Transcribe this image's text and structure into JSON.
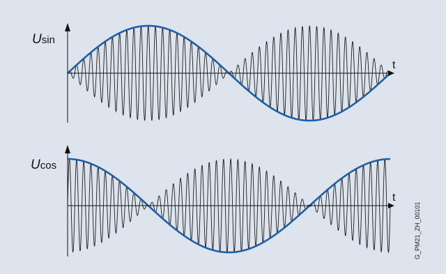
{
  "reference_code": "G_PM21_ZH_00101",
  "colors": {
    "background": "#dde4ee",
    "envelope": "#1f5fa8",
    "carrier": "#1a1a1a",
    "axis": "#111111"
  },
  "panels": [
    {
      "id": "sin",
      "signal_label": "U",
      "signal_subscript": "sin",
      "time_label": "t",
      "envelope": "sin",
      "carrier_cycles": 45
    },
    {
      "id": "cos",
      "signal_label": "U",
      "signal_subscript": "cos",
      "time_label": "t",
      "envelope": "cos",
      "carrier_cycles": 45
    }
  ]
}
